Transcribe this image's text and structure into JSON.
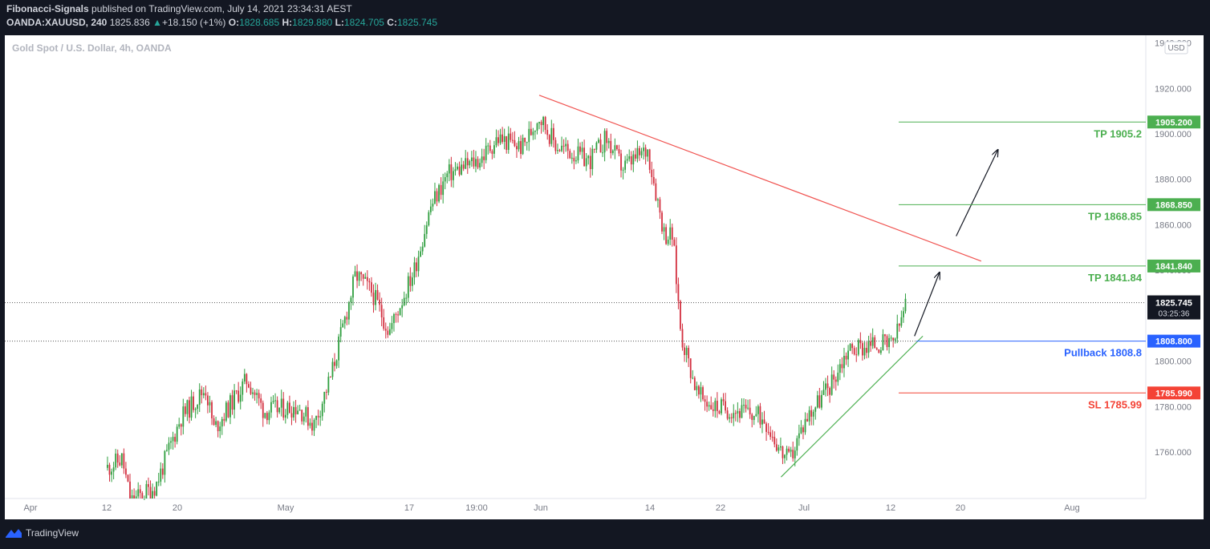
{
  "header": {
    "author": "Fibonacci-Signals",
    "published": "published on TradingView.com, July 14, 2021 23:34:31 AEST",
    "symbol": "OANDA:XAUUSD, 240",
    "last": "1825.836",
    "change": "+18.150 (+1%)",
    "o_label": "O:",
    "o": "1828.685",
    "h_label": "H:",
    "h": "1829.880",
    "l_label": "L:",
    "l": "1824.705",
    "c_label": "C:",
    "c": "1825.745"
  },
  "chart_title": "Gold Spot / U.S. Dollar, 4h, OANDA",
  "currency_badge": "USD",
  "footer": {
    "brand": "TradingView"
  },
  "colors": {
    "background": "#ffffff",
    "frame": "#131722",
    "up": "#26a69a",
    "candle_up": "#2e9e3e",
    "candle_down": "#d32f3f",
    "tp": "#4caf50",
    "sl": "#f44336",
    "pullback": "#2962ff",
    "trend_red": "#f05350",
    "trend_green": "#4caf50",
    "current": "#131722"
  },
  "chart_data": {
    "type": "candlestick",
    "ylim": [
      1742,
      1950
    ],
    "y_ticks": [
      "1760.000",
      "1780.000",
      "1800.000",
      "1820.000",
      "1840.000",
      "1860.000",
      "1880.000",
      "1900.000",
      "1920.000",
      "1940.000"
    ],
    "x_ticks": [
      "Apr",
      "12",
      "20",
      "May",
      "17",
      "19:00",
      "Jun",
      "14",
      "22",
      "Jul",
      "12",
      "20",
      "Aug"
    ],
    "price_path": [
      [
        "2021-04-06",
        1740
      ],
      [
        "2021-04-08",
        1748
      ],
      [
        "2021-04-12",
        1757
      ],
      [
        "2021-04-13",
        1738
      ],
      [
        "2021-04-16",
        1745
      ],
      [
        "2021-04-19",
        1775
      ],
      [
        "2021-04-22",
        1788
      ],
      [
        "2021-04-23",
        1770
      ],
      [
        "2021-04-27",
        1792
      ],
      [
        "2021-04-29",
        1778
      ],
      [
        "2021-05-03",
        1780
      ],
      [
        "2021-05-05",
        1772
      ],
      [
        "2021-05-07",
        1793
      ],
      [
        "2021-05-10",
        1838
      ],
      [
        "2021-05-12",
        1830
      ],
      [
        "2021-05-14",
        1813
      ],
      [
        "2021-05-17",
        1840
      ],
      [
        "2021-05-19",
        1868
      ],
      [
        "2021-05-21",
        1882
      ],
      [
        "2021-05-25",
        1889
      ],
      [
        "2021-05-27",
        1898
      ],
      [
        "2021-05-30",
        1894
      ],
      [
        "2021-06-01",
        1908
      ],
      [
        "2021-06-03",
        1895
      ],
      [
        "2021-06-07",
        1888
      ],
      [
        "2021-06-09",
        1898
      ],
      [
        "2021-06-11",
        1885
      ],
      [
        "2021-06-14",
        1893
      ],
      [
        "2021-06-16",
        1856
      ],
      [
        "2021-06-17",
        1855
      ],
      [
        "2021-06-18",
        1812
      ],
      [
        "2021-06-20",
        1785
      ],
      [
        "2021-06-22",
        1780
      ],
      [
        "2021-06-25",
        1778
      ],
      [
        "2021-06-28",
        1775
      ],
      [
        "2021-06-30",
        1760
      ],
      [
        "2021-07-01",
        1756
      ],
      [
        "2021-07-03",
        1775
      ],
      [
        "2021-07-06",
        1790
      ],
      [
        "2021-07-08",
        1805
      ],
      [
        "2021-07-12",
        1808
      ],
      [
        "2021-07-13",
        1806
      ],
      [
        "2021-07-14",
        1813
      ],
      [
        "2021-07-15",
        1826
      ]
    ],
    "levels": [
      {
        "label": "TP 1905.2",
        "price": 1905.2,
        "tag": "1905.200",
        "kind": "tp"
      },
      {
        "label": "TP 1868.85",
        "price": 1868.85,
        "tag": "1868.850",
        "kind": "tp"
      },
      {
        "label": "TP 1841.84",
        "price": 1841.84,
        "tag": "1841.840",
        "kind": "tp"
      },
      {
        "label": "Pullback 1808.8",
        "price": 1808.8,
        "tag": "1808.800",
        "kind": "pullback"
      },
      {
        "label": "SL 1785.99",
        "price": 1785.99,
        "tag": "1785.990",
        "kind": "sl"
      }
    ],
    "current": {
      "price": 1825.745,
      "tag": "1825.745",
      "countdown": "03:25:36"
    },
    "trendlines": [
      {
        "kind": "resistance",
        "from": [
          "2021-06-01",
          1917
        ],
        "to": [
          "2021-07-24",
          1844
        ]
      },
      {
        "kind": "support",
        "from": [
          "2021-06-30",
          1749
        ],
        "to": [
          "2021-07-17",
          1811
        ]
      }
    ],
    "arrows": [
      {
        "from": [
          "2021-07-16",
          1811
        ],
        "to": [
          "2021-07-19",
          1839
        ]
      },
      {
        "from": [
          "2021-07-21",
          1855
        ],
        "to": [
          "2021-07-26",
          1893
        ]
      }
    ]
  }
}
